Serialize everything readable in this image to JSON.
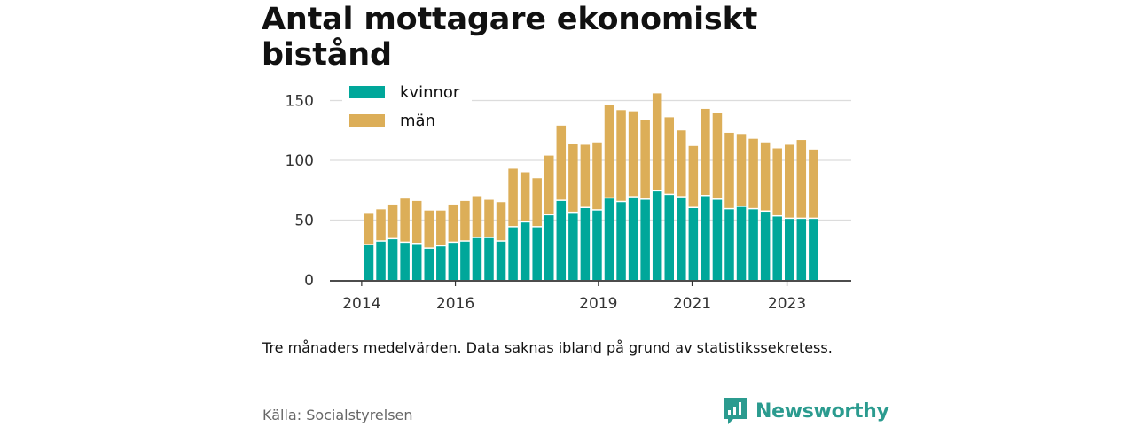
{
  "title": "Antal mottagare ekonomiskt bistånd",
  "note": "Tre månaders medelvärden. Data saknas ibland på grund av statistikssekretess.",
  "source": "Källa: Socialstyrelsen",
  "brand": {
    "name": "Newsworthy",
    "icon": "bar-chart-speech-bubble-icon",
    "color": "#2b9b8f"
  },
  "chart_data": {
    "type": "bar",
    "stacked": true,
    "x_ticks": [
      "2014",
      "2016",
      "2019",
      "2021",
      "2023"
    ],
    "y_ticks": [
      "0",
      "50",
      "100",
      "150"
    ],
    "ylim": [
      0,
      160
    ],
    "grid": true,
    "legend_position": "top-left",
    "categories": [
      "2014-Q2",
      "2014-Q3",
      "2014-Q4",
      "2015-Q1",
      "2015-Q2",
      "2015-Q3",
      "2015-Q4",
      "2016-Q1",
      "2016-Q2",
      "2016-Q3",
      "2016-Q4",
      "2017-Q1",
      "2017-Q2",
      "2017-Q3",
      "2017-Q4",
      "2018-Q1",
      "2018-Q2",
      "2018-Q3",
      "2018-Q4",
      "2019-Q1",
      "2019-Q2",
      "2019-Q3",
      "2019-Q4",
      "2020-Q1",
      "2020-Q2",
      "2020-Q3",
      "2020-Q4",
      "2021-Q1",
      "2021-Q2",
      "2021-Q3",
      "2021-Q4",
      "2022-Q1",
      "2022-Q2",
      "2022-Q3",
      "2022-Q4",
      "2023-Q1",
      "2023-Q2",
      "2023-Q3",
      "2023-Q4"
    ],
    "series": [
      {
        "name": "kvinnor",
        "color": "#00a79a",
        "values": [
          29,
          32,
          34,
          31,
          30,
          26,
          28,
          31,
          32,
          35,
          35,
          32,
          44,
          48,
          44,
          54,
          66,
          56,
          60,
          58,
          68,
          65,
          69,
          67,
          74,
          71,
          69,
          60,
          70,
          67,
          59,
          61,
          59,
          57,
          53,
          51,
          51,
          51,
          0
        ]
      },
      {
        "name": "män",
        "color": "#dcae58",
        "values": [
          27,
          27,
          29,
          37,
          36,
          32,
          30,
          32,
          34,
          35,
          32,
          33,
          49,
          42,
          41,
          50,
          63,
          58,
          53,
          57,
          78,
          77,
          72,
          67,
          82,
          65,
          56,
          52,
          73,
          73,
          64,
          61,
          59,
          58,
          57,
          62,
          66,
          58,
          0
        ]
      }
    ],
    "x_tick_index": {
      "2014": -0.6,
      "2016": 7.2,
      "2019": 19.1,
      "2021": 26.9,
      "2023": 34.8
    }
  }
}
